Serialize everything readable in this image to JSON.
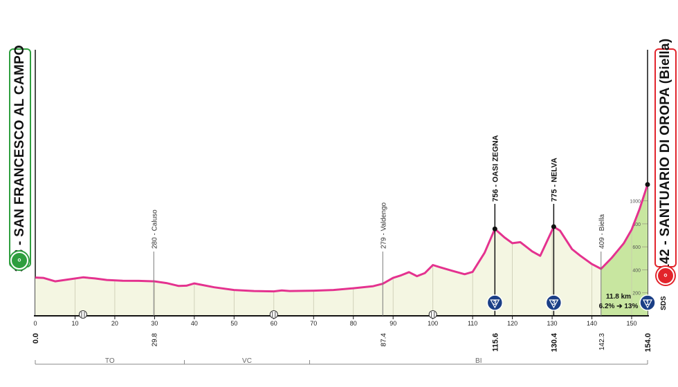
{
  "start": {
    "elevation": "333",
    "name": "SAN FRANCESCO AL CAMPO",
    "label": "333 - SAN FRANCESCO AL CAMPO",
    "color": "#2e9e3e"
  },
  "finish": {
    "elevation": "1142",
    "name": "SANTUARIO DI OROPA (Biella)",
    "label": "1142 - SANTUARIO DI OROPA (Biella)",
    "color": "#e2242b"
  },
  "climb": {
    "length": "11.8 km",
    "gradient": "6.2% ➔ 13%",
    "fill": "#c8e6a0"
  },
  "sds_label": "SDS",
  "colors": {
    "profile_line": "#e4328f",
    "profile_fill": "#f4f6e2",
    "axis": "#111111",
    "kom_blue": "#1b3f86"
  },
  "chart_data": {
    "type": "area",
    "x_unit": "km",
    "y_unit": "m",
    "xlim": [
      0,
      154
    ],
    "ylim": [
      0,
      1142
    ],
    "x_ticks": [
      0,
      10,
      20,
      30,
      40,
      50,
      60,
      70,
      80,
      90,
      100,
      110,
      120,
      130,
      140,
      150
    ],
    "y_ticks": [
      200,
      400,
      600,
      800,
      1000
    ],
    "profile": [
      [
        0,
        333
      ],
      [
        2,
        330
      ],
      [
        5,
        300
      ],
      [
        8,
        315
      ],
      [
        12,
        335
      ],
      [
        15,
        325
      ],
      [
        18,
        312
      ],
      [
        22,
        305
      ],
      [
        26,
        304
      ],
      [
        30,
        300
      ],
      [
        33,
        285
      ],
      [
        36,
        260
      ],
      [
        38,
        262
      ],
      [
        40,
        282
      ],
      [
        45,
        248
      ],
      [
        50,
        225
      ],
      [
        55,
        216
      ],
      [
        60,
        213
      ],
      [
        62,
        221
      ],
      [
        64,
        216
      ],
      [
        70,
        219
      ],
      [
        75,
        225
      ],
      [
        80,
        240
      ],
      [
        85,
        258
      ],
      [
        87.4,
        279
      ],
      [
        90,
        330
      ],
      [
        92,
        352
      ],
      [
        94,
        380
      ],
      [
        96,
        345
      ],
      [
        98,
        372
      ],
      [
        100,
        442
      ],
      [
        102,
        420
      ],
      [
        105,
        390
      ],
      [
        108,
        362
      ],
      [
        110,
        382
      ],
      [
        113,
        548
      ],
      [
        115.6,
        756
      ],
      [
        118,
        682
      ],
      [
        120,
        632
      ],
      [
        122,
        641
      ],
      [
        125,
        560
      ],
      [
        127,
        522
      ],
      [
        130.4,
        775
      ],
      [
        132,
        740
      ],
      [
        135,
        580
      ],
      [
        137,
        525
      ],
      [
        140,
        450
      ],
      [
        142.3,
        409
      ],
      [
        145,
        505
      ],
      [
        148,
        630
      ],
      [
        150,
        750
      ],
      [
        152,
        930
      ],
      [
        154,
        1142
      ]
    ],
    "markers": [
      {
        "km": "0.0",
        "x": 0,
        "label": ""
      },
      {
        "km": "29.8",
        "x": 29.8,
        "label": "280 - Caluso",
        "elev": 280
      },
      {
        "km": "87.4",
        "x": 87.4,
        "label": "279 - Valdengo",
        "elev": 279
      },
      {
        "km": "115.6",
        "x": 115.6,
        "label": "756 - OASI ZEGNA",
        "elev": 756,
        "kom": "3"
      },
      {
        "km": "130.4",
        "x": 130.4,
        "label": "775 - NELVA",
        "elev": 775,
        "kom": "3"
      },
      {
        "km": "142.3",
        "x": 142.3,
        "label": "409 - Biella",
        "elev": 409
      },
      {
        "km": "154.0",
        "x": 154,
        "label": "",
        "kom": "1"
      }
    ],
    "sprint_icons_km": [
      12,
      60,
      100
    ],
    "provinces": [
      {
        "name": "TO",
        "from": 0,
        "to": 37.5
      },
      {
        "name": "VC",
        "from": 37.5,
        "to": 69
      },
      {
        "name": "BI",
        "from": 69,
        "to": 154
      }
    ]
  }
}
